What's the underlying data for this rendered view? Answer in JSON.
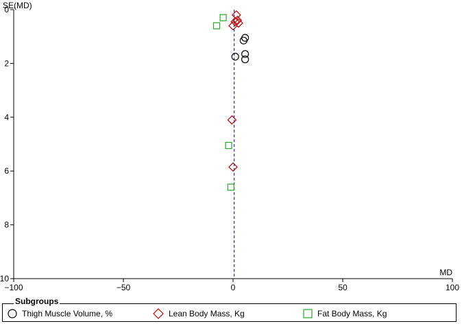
{
  "chart_data": {
    "type": "scatter",
    "title": "",
    "xlabel": "MD",
    "ylabel": "SE(MD)",
    "xlim": [
      -100,
      100
    ],
    "ylim": [
      0,
      10
    ],
    "y_inverted": true,
    "x_ticks": [
      -100,
      -50,
      0,
      50,
      100
    ],
    "y_ticks": [
      0,
      2,
      4,
      6,
      8,
      10
    ],
    "reference_line_x": 0.5,
    "legend": {
      "title": "Subgroups",
      "placement": "bottom"
    },
    "series": [
      {
        "name": "Thigh Muscle Volume, %",
        "marker": "circle",
        "color": "#000000",
        "points": [
          [
            5.5,
            1.05
          ],
          [
            4.8,
            1.15
          ],
          [
            1.0,
            1.75
          ],
          [
            5.5,
            1.65
          ],
          [
            5.5,
            1.85
          ]
        ]
      },
      {
        "name": "Lean Body Mass, Kg",
        "marker": "diamond",
        "color": "#c00000",
        "points": [
          [
            1.5,
            0.2
          ],
          [
            2.0,
            0.4
          ],
          [
            2.5,
            0.5
          ],
          [
            1.0,
            0.45
          ],
          [
            0.0,
            0.6
          ],
          [
            -0.5,
            4.1
          ],
          [
            0.0,
            5.85
          ]
        ]
      },
      {
        "name": "Fat Body Mass, Kg",
        "marker": "square",
        "color": "#22aa22",
        "points": [
          [
            -4.5,
            0.3
          ],
          [
            -7.5,
            0.6
          ],
          [
            -2.0,
            5.05
          ],
          [
            -1.0,
            6.6
          ]
        ]
      }
    ]
  }
}
